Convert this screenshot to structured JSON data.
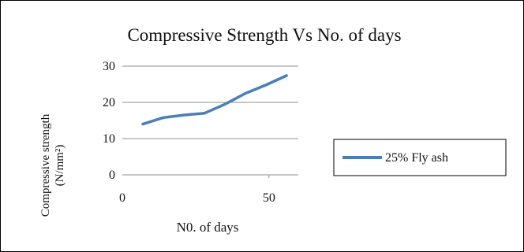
{
  "chart_data": {
    "type": "line",
    "title": "Compressive Strength Vs No. of days",
    "xlabel": "N0. of days",
    "ylabel": "Compressive strength (N/mm²)",
    "ylabel_line1": "Compressive strength",
    "ylabel_line2": "(N/mm²)",
    "xlim": [
      0,
      60
    ],
    "ylim": [
      0,
      30
    ],
    "x_ticks": [
      0,
      50
    ],
    "x_tick_labels": [
      "0",
      "50"
    ],
    "y_ticks": [
      0,
      10,
      20,
      30
    ],
    "y_tick_labels": [
      "0",
      "10",
      "20",
      "30"
    ],
    "grid": "horizontal",
    "legend_position": "right",
    "series": [
      {
        "name": "25% Fly ash",
        "color": "#4a7ebb",
        "x": [
          7,
          14,
          21,
          28,
          35,
          42,
          49,
          56
        ],
        "y": [
          14,
          15.8,
          16.5,
          17,
          19.5,
          22.5,
          24.8,
          27.4
        ]
      }
    ]
  }
}
